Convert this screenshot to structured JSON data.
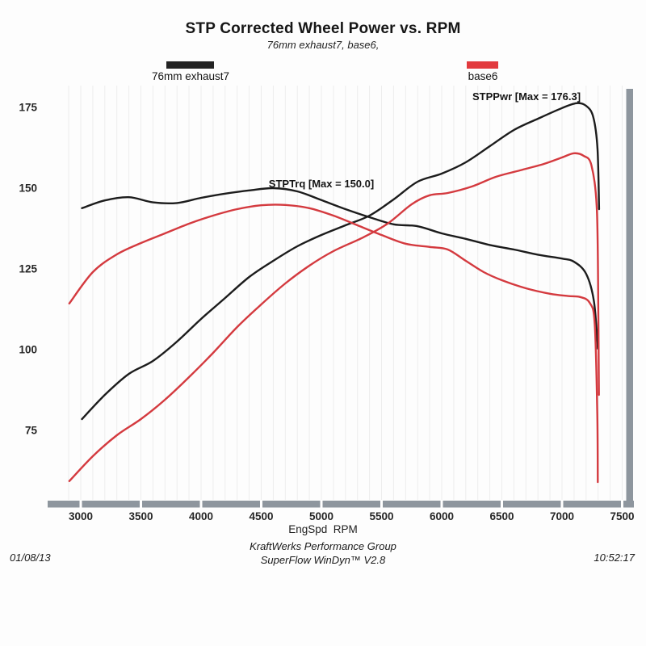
{
  "title": "STP Corrected Wheel Power vs. RPM",
  "subtitle": "76mm exhaust7, base6,",
  "legend": [
    {
      "label": "76mm exhaust7",
      "color": "#232323"
    },
    {
      "label": "base6",
      "color": "#e23a3e"
    }
  ],
  "annotations": [
    {
      "text": "STPPwr [Max = 176.3]",
      "rpm": 6705,
      "value": 177.2
    },
    {
      "text": "STPTrq [Max = 150.0]",
      "rpm": 5000,
      "value": 150.3
    }
  ],
  "footer": {
    "date": "01/08/13",
    "org": "KraftWerks Performance Group",
    "software": "SuperFlow WinDyn™ V2.8",
    "time": "10:52:17"
  },
  "colors": {
    "axis_bar": "#8e969e",
    "grid": "#ededed",
    "black_series": "#1c1c1c",
    "red_series": "#d43a3f"
  },
  "chart_data": {
    "type": "line",
    "title": "STP Corrected Wheel Power vs. RPM",
    "xlabel": "EngSpd  RPM",
    "ylabel": "",
    "x_ticks": [
      3000,
      3500,
      4000,
      4500,
      5000,
      5500,
      6000,
      6500,
      7000,
      7500
    ],
    "y_ticks": [
      75,
      100,
      125,
      150,
      175
    ],
    "xlim": [
      2900,
      7500
    ],
    "ylim": [
      55,
      180
    ],
    "grid": "faint vertical minor lines every 100 RPM",
    "legend_position": "top",
    "series": [
      {
        "name": "76mm exhaust7 STPPwr",
        "color": "#1c1c1c",
        "max": 176.3,
        "points": [
          [
            3010,
            78.5
          ],
          [
            3200,
            86
          ],
          [
            3400,
            92.5
          ],
          [
            3600,
            96.5
          ],
          [
            3800,
            102.5
          ],
          [
            4000,
            109.5
          ],
          [
            4200,
            116
          ],
          [
            4400,
            122.5
          ],
          [
            4600,
            127.5
          ],
          [
            4800,
            132
          ],
          [
            5000,
            135.5
          ],
          [
            5200,
            138.5
          ],
          [
            5400,
            141.5
          ],
          [
            5600,
            146.5
          ],
          [
            5800,
            152
          ],
          [
            6000,
            154.5
          ],
          [
            6200,
            158
          ],
          [
            6400,
            163
          ],
          [
            6600,
            168
          ],
          [
            6800,
            171.5
          ],
          [
            7000,
            174.8
          ],
          [
            7120,
            176.3
          ],
          [
            7200,
            175.5
          ],
          [
            7260,
            172
          ],
          [
            7295,
            162
          ],
          [
            7308,
            143.5
          ]
        ]
      },
      {
        "name": "76mm exhaust7 STPTrq",
        "color": "#1c1c1c",
        "max": 150.0,
        "points": [
          [
            3010,
            143.8
          ],
          [
            3200,
            146.2
          ],
          [
            3400,
            147.2
          ],
          [
            3600,
            145.6
          ],
          [
            3800,
            145.4
          ],
          [
            4000,
            147
          ],
          [
            4200,
            148.3
          ],
          [
            4400,
            149.3
          ],
          [
            4600,
            150
          ],
          [
            4800,
            149
          ],
          [
            5000,
            146.3
          ],
          [
            5200,
            143.5
          ],
          [
            5400,
            141
          ],
          [
            5600,
            138.8
          ],
          [
            5800,
            138.2
          ],
          [
            6000,
            136
          ],
          [
            6200,
            134.3
          ],
          [
            6400,
            132.4
          ],
          [
            6600,
            131
          ],
          [
            6800,
            129.4
          ],
          [
            7000,
            128.2
          ],
          [
            7100,
            127.2
          ],
          [
            7200,
            123.5
          ],
          [
            7265,
            115
          ],
          [
            7298,
            100.3
          ]
        ]
      },
      {
        "name": "base6 STPPwr",
        "color": "#d43a3f",
        "max": 160.8,
        "points": [
          [
            2905,
            59.3
          ],
          [
            3100,
            67
          ],
          [
            3300,
            73.5
          ],
          [
            3500,
            78.5
          ],
          [
            3700,
            84.5
          ],
          [
            3900,
            91.5
          ],
          [
            4100,
            99
          ],
          [
            4300,
            107
          ],
          [
            4500,
            114
          ],
          [
            4700,
            120.5
          ],
          [
            4900,
            126
          ],
          [
            5100,
            130.5
          ],
          [
            5350,
            134.8
          ],
          [
            5550,
            139
          ],
          [
            5750,
            145
          ],
          [
            5900,
            147.8
          ],
          [
            6050,
            148.5
          ],
          [
            6250,
            150.5
          ],
          [
            6450,
            153.5
          ],
          [
            6650,
            155.5
          ],
          [
            6850,
            157.5
          ],
          [
            7000,
            159.5
          ],
          [
            7100,
            160.8
          ],
          [
            7180,
            160
          ],
          [
            7245,
            157
          ],
          [
            7290,
            143
          ],
          [
            7302,
            110
          ],
          [
            7307,
            86
          ]
        ]
      },
      {
        "name": "base6 STPTrq",
        "color": "#d43a3f",
        "max": 144.8,
        "points": [
          [
            2905,
            114.3
          ],
          [
            3100,
            124
          ],
          [
            3300,
            129.5
          ],
          [
            3500,
            133
          ],
          [
            3700,
            136
          ],
          [
            3900,
            139
          ],
          [
            4100,
            141.5
          ],
          [
            4300,
            143.5
          ],
          [
            4500,
            144.7
          ],
          [
            4700,
            144.8
          ],
          [
            4900,
            143.8
          ],
          [
            5100,
            141.5
          ],
          [
            5300,
            138.5
          ],
          [
            5500,
            135.5
          ],
          [
            5700,
            132.8
          ],
          [
            5900,
            131.8
          ],
          [
            6050,
            131
          ],
          [
            6200,
            127.5
          ],
          [
            6350,
            124
          ],
          [
            6500,
            121.5
          ],
          [
            6700,
            119
          ],
          [
            6900,
            117.3
          ],
          [
            7050,
            116.6
          ],
          [
            7150,
            116.3
          ],
          [
            7230,
            114.5
          ],
          [
            7272,
            108
          ],
          [
            7293,
            80
          ],
          [
            7297,
            59
          ]
        ]
      }
    ]
  }
}
